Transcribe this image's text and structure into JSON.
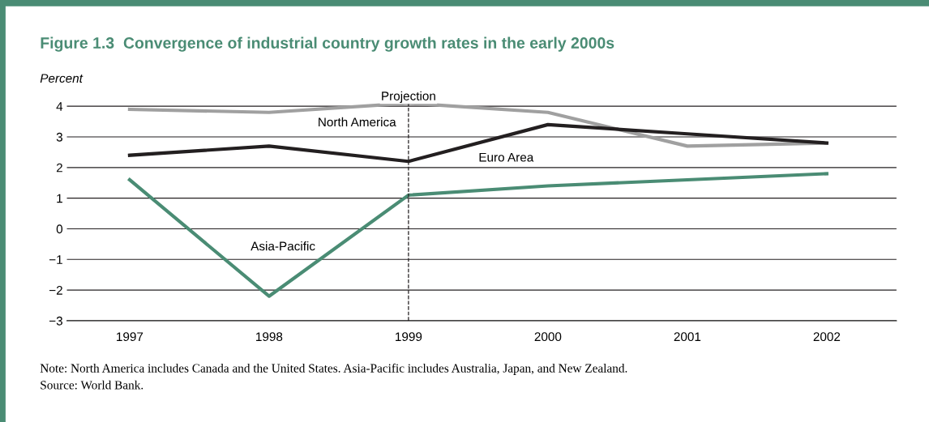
{
  "chart_data": {
    "type": "line",
    "title": "Figure 1.3  Convergence of industrial country growth rates in the early 2000s",
    "ylabel": "Percent",
    "categories": [
      "1997",
      "1998",
      "1999",
      "2000",
      "2001",
      "2002"
    ],
    "series": [
      {
        "name": "North America",
        "color": "#a0a0a0",
        "values": [
          3.9,
          3.8,
          4.1,
          3.8,
          2.7,
          2.8
        ]
      },
      {
        "name": "Euro Area",
        "color": "#231f20",
        "values": [
          2.4,
          2.7,
          2.2,
          3.4,
          3.1,
          2.8
        ]
      },
      {
        "name": "Asia-Pacific",
        "color": "#4a8c74",
        "values": [
          1.6,
          -2.2,
          1.1,
          1.4,
          1.6,
          1.8
        ]
      }
    ],
    "ylim": [
      -3,
      4.3
    ],
    "yticks": [
      {
        "value": -3,
        "label": "−3"
      },
      {
        "value": -2,
        "label": "−2"
      },
      {
        "value": -1,
        "label": "−1"
      },
      0,
      1,
      2,
      3,
      4
    ],
    "grid": "y",
    "legend": false,
    "marker": "none",
    "line_style": "solid",
    "ref_lines": [
      {
        "axis": "x",
        "value": "1999",
        "label": "Projection",
        "color": "#231f20",
        "line_style": "dashed"
      }
    ],
    "annotations": [
      "Note: North America includes Canada and the United States. Asia-Pacific includes Australia, Japan, and New Zealand.",
      "Source: World Bank."
    ]
  }
}
